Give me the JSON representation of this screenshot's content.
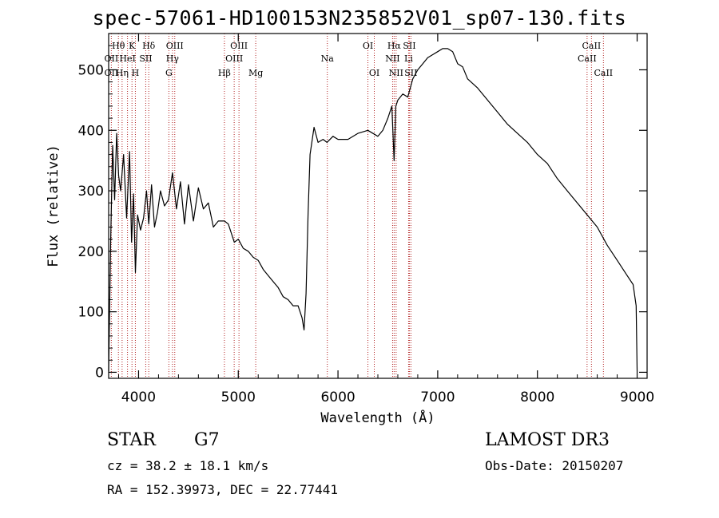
{
  "chart_data": {
    "type": "line",
    "title": "spec-57061-HD100153N235852V01_sp07-130.fits",
    "xlabel": "Wavelength (Å)",
    "ylabel": "Flux (relative)",
    "xlim": [
      3700,
      9100
    ],
    "ylim": [
      -10,
      560
    ],
    "xticks": [
      4000,
      5000,
      6000,
      7000,
      8000,
      9000
    ],
    "yticks": [
      0,
      100,
      200,
      300,
      400,
      500
    ],
    "grid": false,
    "series": [
      {
        "name": "spectrum",
        "x": [
          3700,
          3720,
          3740,
          3760,
          3780,
          3800,
          3820,
          3850,
          3880,
          3910,
          3930,
          3950,
          3968,
          3990,
          4020,
          4050,
          4080,
          4102,
          4130,
          4160,
          4190,
          4220,
          4260,
          4300,
          4340,
          4380,
          4420,
          4460,
          4500,
          4550,
          4600,
          4650,
          4700,
          4750,
          4800,
          4861,
          4900,
          4960,
          5000,
          5050,
          5100,
          5150,
          5200,
          5250,
          5300,
          5350,
          5400,
          5450,
          5500,
          5550,
          5600,
          5640,
          5660,
          5680,
          5700,
          5720,
          5760,
          5800,
          5850,
          5890,
          5950,
          6000,
          6100,
          6200,
          6300,
          6400,
          6450,
          6500,
          6540,
          6563,
          6580,
          6600,
          6650,
          6700,
          6750,
          6800,
          6850,
          6900,
          6950,
          7000,
          7050,
          7100,
          7150,
          7200,
          7250,
          7300,
          7400,
          7500,
          7600,
          7700,
          7800,
          7900,
          8000,
          8100,
          8200,
          8300,
          8400,
          8500,
          8600,
          8700,
          8800,
          8900,
          8960,
          8990,
          9000
        ],
        "y": [
          2,
          215,
          375,
          285,
          395,
          325,
          300,
          360,
          255,
          365,
          215,
          295,
          165,
          260,
          235,
          255,
          300,
          245,
          310,
          240,
          265,
          300,
          275,
          285,
          330,
          270,
          315,
          245,
          310,
          250,
          305,
          270,
          280,
          240,
          250,
          250,
          245,
          215,
          220,
          205,
          200,
          190,
          185,
          170,
          160,
          150,
          140,
          125,
          120,
          110,
          110,
          90,
          70,
          130,
          260,
          360,
          405,
          380,
          385,
          380,
          390,
          385,
          385,
          395,
          400,
          390,
          400,
          420,
          440,
          350,
          440,
          450,
          460,
          455,
          485,
          500,
          510,
          520,
          525,
          530,
          535,
          535,
          530,
          510,
          505,
          485,
          470,
          450,
          430,
          410,
          395,
          380,
          360,
          345,
          320,
          300,
          280,
          260,
          240,
          210,
          185,
          160,
          145,
          110,
          3
        ]
      }
    ],
    "lines": [
      {
        "name": "OII",
        "x": 3727,
        "color": "#b22222"
      },
      {
        "name": "Hθ",
        "x": 3798,
        "color": "#b22222"
      },
      {
        "name": "Hη",
        "x": 3835,
        "color": "#b22222"
      },
      {
        "name": "HeI",
        "x": 3889,
        "color": "#b22222"
      },
      {
        "name": "K",
        "x": 3934,
        "color": "#b22222"
      },
      {
        "name": "H",
        "x": 3968,
        "color": "#b22222"
      },
      {
        "name": "Hδ",
        "x": 4102,
        "color": "#b22222"
      },
      {
        "name": "SII",
        "x": 4072,
        "color": "#b22222"
      },
      {
        "name": "G",
        "x": 4304,
        "color": "#b22222"
      },
      {
        "name": "Hγ",
        "x": 4340,
        "color": "#b22222"
      },
      {
        "name": "OIII",
        "x": 4363,
        "color": "#b22222"
      },
      {
        "name": "Hβ",
        "x": 4861,
        "color": "#b22222"
      },
      {
        "name": "OIII",
        "x": 4959,
        "color": "#b22222"
      },
      {
        "name": "OIII",
        "x": 5007,
        "color": "#b22222"
      },
      {
        "name": "Mg",
        "x": 5175,
        "color": "#b22222"
      },
      {
        "name": "Na",
        "x": 5893,
        "color": "#b22222"
      },
      {
        "name": "OI",
        "x": 6300,
        "color": "#b22222"
      },
      {
        "name": "OI",
        "x": 6364,
        "color": "#b22222"
      },
      {
        "name": "NII",
        "x": 6548,
        "color": "#b22222"
      },
      {
        "name": "Hα",
        "x": 6563,
        "color": "#b22222"
      },
      {
        "name": "NII",
        "x": 6583,
        "color": "#b22222"
      },
      {
        "name": "Li",
        "x": 6708,
        "color": "#b22222"
      },
      {
        "name": "SII",
        "x": 6716,
        "color": "#b22222"
      },
      {
        "name": "SII",
        "x": 6731,
        "color": "#b22222"
      },
      {
        "name": "CaII",
        "x": 8498,
        "color": "#b22222"
      },
      {
        "name": "CaII",
        "x": 8542,
        "color": "#b22222"
      },
      {
        "name": "CaII",
        "x": 8662,
        "color": "#b22222"
      }
    ],
    "line_labels": {
      "row1": [
        {
          "text": "Hθ",
          "x": 3798
        },
        {
          "text": "K",
          "x": 3934
        },
        {
          "text": "Hδ",
          "x": 4102
        },
        {
          "text": "OIII",
          "x": 4363
        },
        {
          "text": "OIII",
          "x": 5007
        },
        {
          "text": "OI",
          "x": 6300
        },
        {
          "text": "Hα",
          "x": 6563
        },
        {
          "text": "SII",
          "x": 6716
        },
        {
          "text": "CaII",
          "x": 8542
        }
      ],
      "row2": [
        {
          "text": "OII",
          "x": 3727
        },
        {
          "text": "HeI",
          "x": 3889
        },
        {
          "text": "SII",
          "x": 4072
        },
        {
          "text": "Hγ",
          "x": 4340
        },
        {
          "text": "OIII",
          "x": 4959
        },
        {
          "text": "Na",
          "x": 5893
        },
        {
          "text": "NII",
          "x": 6548
        },
        {
          "text": "Li",
          "x": 6708
        },
        {
          "text": "CaII",
          "x": 8498
        }
      ],
      "row3": [
        {
          "text": "OII",
          "x": 3727
        },
        {
          "text": "Hη",
          "x": 3835
        },
        {
          "text": "H",
          "x": 3968
        },
        {
          "text": "G",
          "x": 4304
        },
        {
          "text": "Hβ",
          "x": 4861
        },
        {
          "text": "Mg",
          "x": 5175
        },
        {
          "text": "OI",
          "x": 6364
        },
        {
          "text": "NII",
          "x": 6583
        },
        {
          "text": "SII",
          "x": 6731
        },
        {
          "text": "CaII",
          "x": 8662
        }
      ]
    }
  },
  "info": {
    "object_class": "STAR",
    "subclass": "G7",
    "survey": "LAMOST DR3",
    "cz": "cz = 38.2 ± 18.1 km/s",
    "obs_date": "Obs-Date: 20150207",
    "coords": "RA = 152.39973, DEC =  22.77441"
  }
}
